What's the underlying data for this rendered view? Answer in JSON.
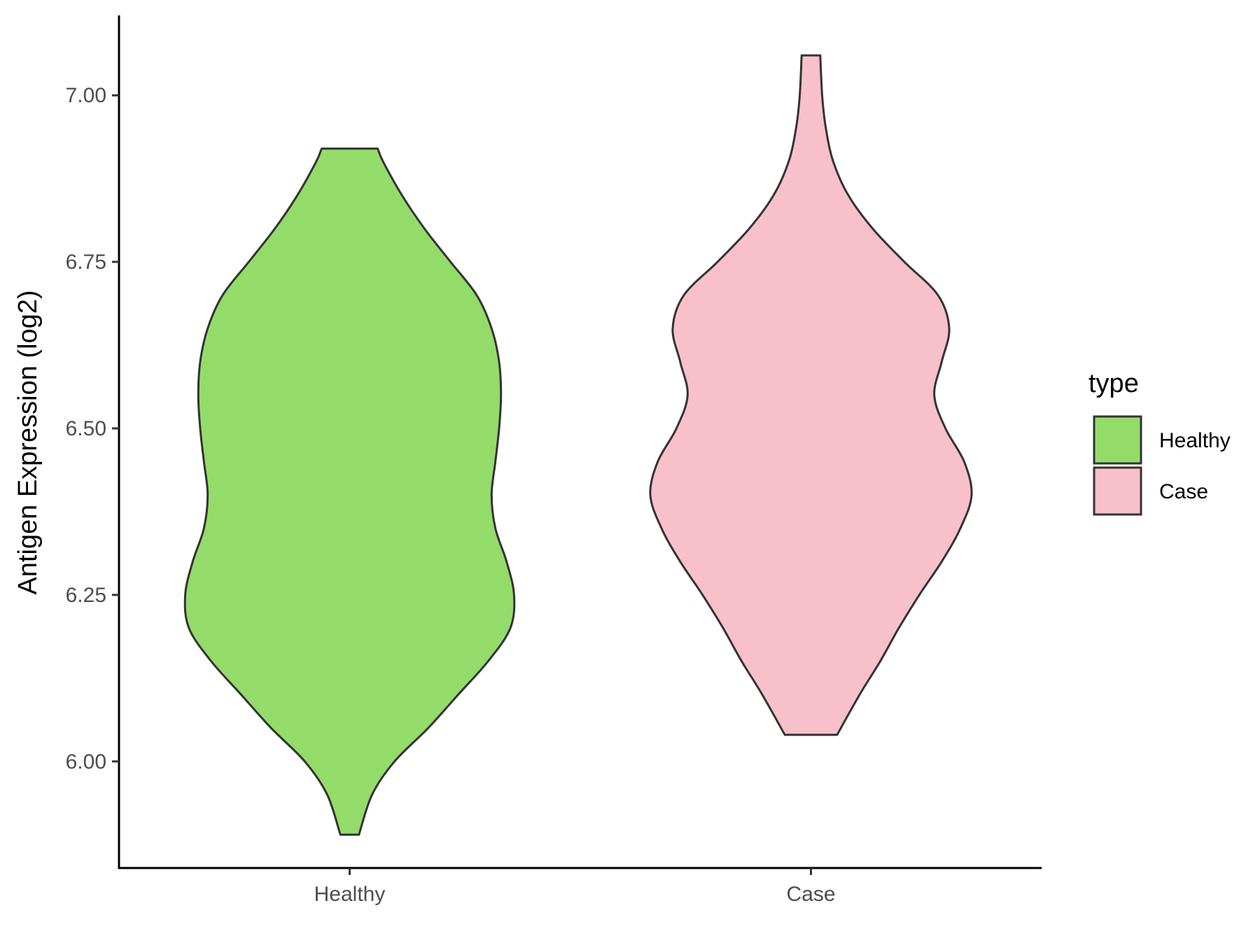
{
  "chart_data": {
    "type": "violin",
    "ylabel": "Antigen Expression (log2)",
    "xlabel": "",
    "categories": [
      "Healthy",
      "Case"
    ],
    "ylim": [
      5.84,
      7.12
    ],
    "yticks": [
      6.0,
      6.25,
      6.5,
      6.75,
      7.0
    ],
    "ytick_labels": [
      "6.00",
      "6.25",
      "6.50",
      "6.75",
      "7.00"
    ],
    "grid": false,
    "legend": {
      "title": "type",
      "position": "right",
      "entries": [
        "Healthy",
        "Case"
      ]
    },
    "series": [
      {
        "name": "Healthy",
        "color": "#93dc6a",
        "ymin": 5.89,
        "ymax": 6.92,
        "density_profile": [
          [
            5.89,
            0.05
          ],
          [
            5.95,
            0.12
          ],
          [
            6.0,
            0.24
          ],
          [
            6.05,
            0.42
          ],
          [
            6.1,
            0.58
          ],
          [
            6.15,
            0.74
          ],
          [
            6.2,
            0.86
          ],
          [
            6.25,
            0.88
          ],
          [
            6.3,
            0.84
          ],
          [
            6.35,
            0.78
          ],
          [
            6.4,
            0.76
          ],
          [
            6.45,
            0.78
          ],
          [
            6.5,
            0.8
          ],
          [
            6.55,
            0.81
          ],
          [
            6.6,
            0.8
          ],
          [
            6.65,
            0.76
          ],
          [
            6.7,
            0.68
          ],
          [
            6.75,
            0.54
          ],
          [
            6.8,
            0.4
          ],
          [
            6.85,
            0.28
          ],
          [
            6.9,
            0.18
          ],
          [
            6.92,
            0.15
          ]
        ]
      },
      {
        "name": "Case",
        "color": "#f8c0cb",
        "ymin": 6.04,
        "ymax": 7.06,
        "density_profile": [
          [
            6.04,
            0.14
          ],
          [
            6.1,
            0.26
          ],
          [
            6.15,
            0.37
          ],
          [
            6.2,
            0.47
          ],
          [
            6.25,
            0.58
          ],
          [
            6.3,
            0.7
          ],
          [
            6.35,
            0.8
          ],
          [
            6.4,
            0.86
          ],
          [
            6.45,
            0.82
          ],
          [
            6.5,
            0.72
          ],
          [
            6.55,
            0.66
          ],
          [
            6.6,
            0.7
          ],
          [
            6.65,
            0.74
          ],
          [
            6.7,
            0.68
          ],
          [
            6.75,
            0.5
          ],
          [
            6.8,
            0.33
          ],
          [
            6.85,
            0.2
          ],
          [
            6.9,
            0.12
          ],
          [
            6.95,
            0.08
          ],
          [
            7.0,
            0.06
          ],
          [
            7.06,
            0.05
          ]
        ]
      }
    ]
  }
}
